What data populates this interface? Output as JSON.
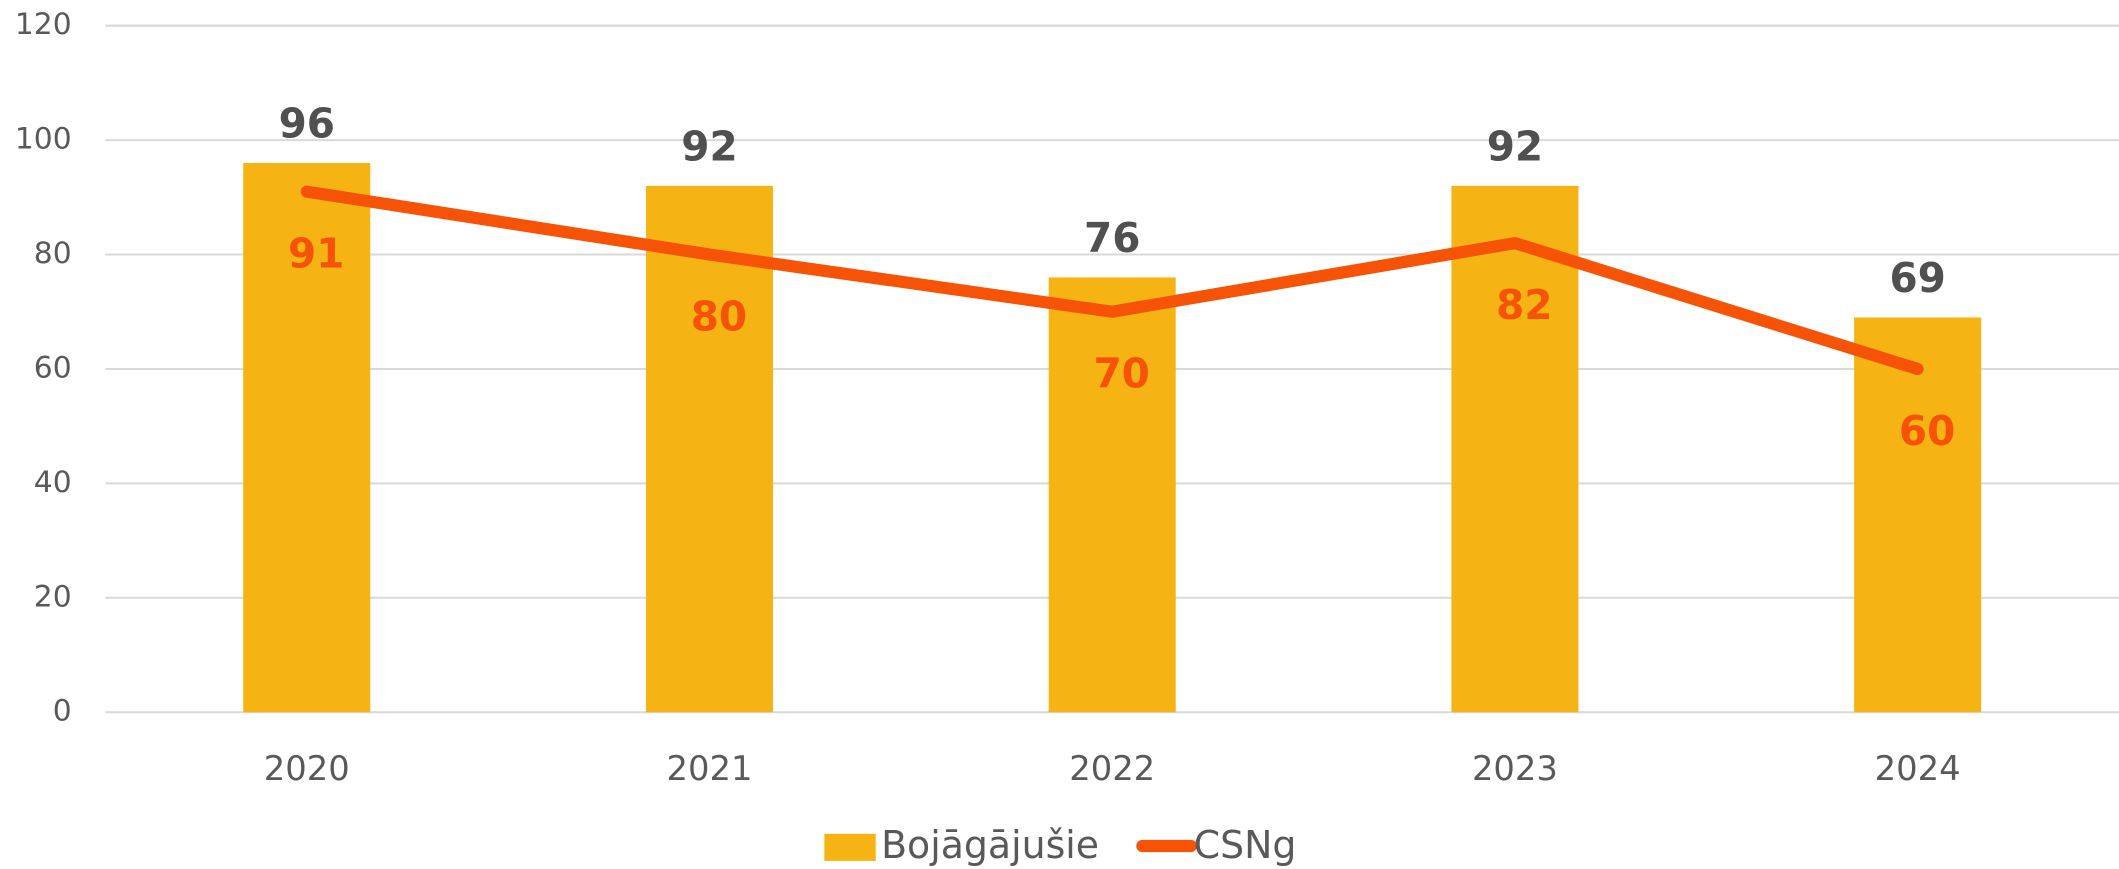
{
  "chart_data": {
    "type": "bar",
    "categories": [
      "2020",
      "2021",
      "2022",
      "2023",
      "2024"
    ],
    "series": [
      {
        "name": "Bojāgājušie",
        "type": "bar",
        "color": "#F5B314",
        "values": [
          96,
          92,
          76,
          92,
          69
        ]
      },
      {
        "name": "CSNg",
        "type": "line",
        "color": "#F75306",
        "values": [
          91,
          80,
          70,
          82,
          60
        ]
      }
    ],
    "ylim": [
      0,
      120
    ],
    "yticks": [
      0,
      20,
      40,
      60,
      80,
      100,
      120
    ],
    "grid": true,
    "legend": "bottom"
  }
}
